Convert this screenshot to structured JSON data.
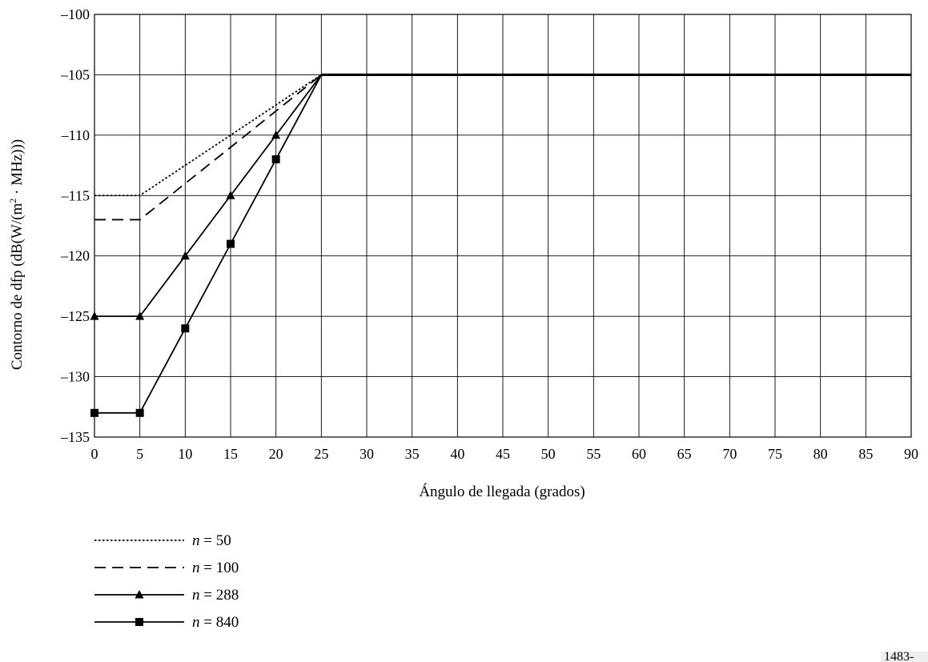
{
  "chart_data": {
    "type": "line",
    "title": "",
    "xlabel": "Ángulo de llegada (grados)",
    "ylabel_main": "Contorno de dfp (dB(W/(m",
    "ylabel_sup": "2",
    "ylabel_tail": " · MHz)))",
    "xlim": [
      0,
      90
    ],
    "ylim": [
      -135,
      -100
    ],
    "xticks": [
      0,
      5,
      10,
      15,
      20,
      25,
      30,
      35,
      40,
      45,
      50,
      55,
      60,
      65,
      70,
      75,
      80,
      85,
      90
    ],
    "yticks": [
      -135,
      -130,
      -125,
      -120,
      -115,
      -110,
      -105,
      -100
    ],
    "xtick_labels": [
      "0",
      "5",
      "10",
      "15",
      "20",
      "25",
      "30",
      "35",
      "40",
      "45",
      "50",
      "55",
      "60",
      "65",
      "70",
      "75",
      "80",
      "85",
      "90"
    ],
    "ytick_labels": [
      "–135",
      "–130",
      "–125",
      "–120",
      "–115",
      "–110",
      "–105",
      "–100"
    ],
    "grid": true,
    "legend_position": "bottom-left",
    "series": [
      {
        "name_var": "n",
        "name_rest": " = 50",
        "style": "dotted",
        "marker": "none",
        "x": [
          0,
          5,
          25,
          90
        ],
        "y": [
          -115,
          -115,
          -105,
          -105
        ]
      },
      {
        "name_var": "n",
        "name_rest": " = 100",
        "style": "dashed",
        "marker": "none",
        "x": [
          0,
          5,
          25,
          90
        ],
        "y": [
          -117,
          -117,
          -105,
          -105
        ]
      },
      {
        "name_var": "n",
        "name_rest": " = 288",
        "style": "solid",
        "marker": "triangle",
        "x": [
          0,
          5,
          10,
          15,
          20,
          25,
          90
        ],
        "y": [
          -125,
          -125,
          -120,
          -115,
          -110,
          -105,
          -105
        ]
      },
      {
        "name_var": "n",
        "name_rest": " = 840",
        "style": "solid",
        "marker": "square",
        "x": [
          0,
          5,
          10,
          15,
          20,
          25,
          90
        ],
        "y": [
          -133,
          -133,
          -126,
          -119,
          -112,
          -105,
          -105
        ]
      }
    ]
  },
  "figure_id": "1483-01"
}
